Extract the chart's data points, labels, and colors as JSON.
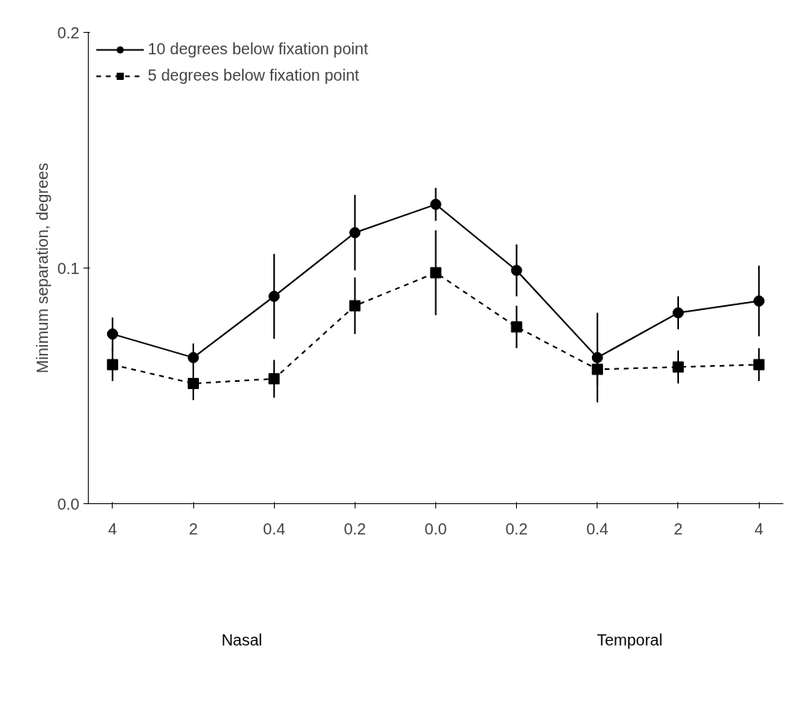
{
  "chart_data": {
    "type": "line",
    "ylabel": "Minimum separation, degrees",
    "categories": [
      "4",
      "2",
      "0.4",
      "0.2",
      "0.0",
      "0.2",
      "0.4",
      "2",
      "4"
    ],
    "ylim": [
      0,
      0.2
    ],
    "yticks": [
      {
        "value": 0,
        "label": "0.0"
      },
      0.1,
      0.2
    ],
    "grid": false,
    "legend": "top",
    "series": [
      {
        "name": "10 degrees below fixation point",
        "color": "#000000",
        "marker": "circle",
        "line_style": "solid",
        "values": [
          0.072,
          0.062,
          0.088,
          0.115,
          0.127,
          0.099,
          0.062,
          0.081,
          0.086
        ],
        "errors": [
          0.007,
          0.006,
          0.018,
          0.016,
          0.007,
          0.011,
          0.019,
          0.007,
          0.015
        ]
      },
      {
        "name": "5 degrees below fixation point",
        "color": "#000000",
        "marker": "square",
        "line_style": "dashed",
        "values": [
          0.059,
          0.051,
          0.053,
          0.084,
          0.098,
          0.075,
          0.057,
          0.058,
          0.059
        ],
        "errors": [
          0.007,
          0.007,
          0.008,
          0.012,
          0.018,
          0.009,
          0.007,
          0.007,
          0.007
        ]
      }
    ],
    "annotations": [
      "Nasal",
      "Temporal"
    ]
  }
}
